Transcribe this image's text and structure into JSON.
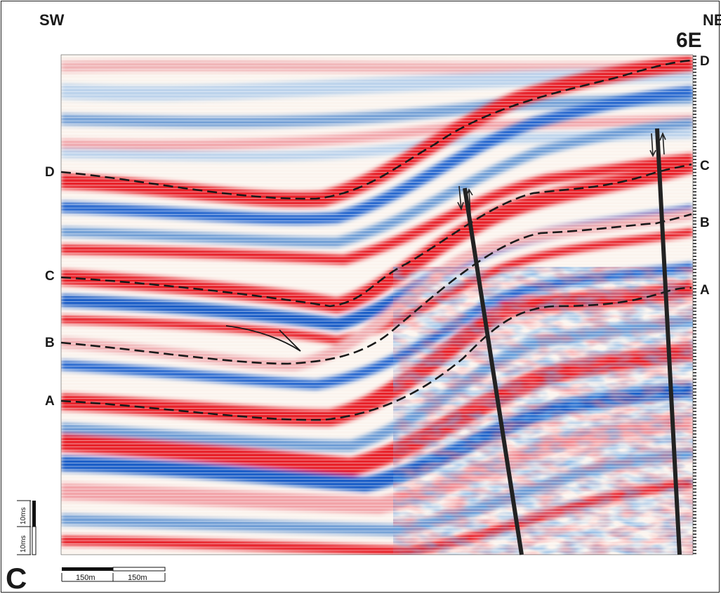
{
  "figure": {
    "panel_letter": "C",
    "panel_title": "6E",
    "direction_left": "SW",
    "direction_right": "NE"
  },
  "horizons": {
    "left_labels": [
      "D",
      "C",
      "B",
      "A"
    ],
    "right_labels": [
      "D",
      "C",
      "B",
      "A"
    ]
  },
  "scale_bars": {
    "horizontal_left": "150m",
    "horizontal_right": "150m",
    "vertical_lower": "10ms",
    "vertical_upper": "10ms"
  },
  "colors": {
    "positive_amplitude": "#e8242b",
    "negative_amplitude": "#1f5fc8",
    "mid_blue": "#6f9ed6",
    "light_blue": "#b9d2ec",
    "pink": "#f2a3a8",
    "interpretation": "#1a1a1a"
  }
}
